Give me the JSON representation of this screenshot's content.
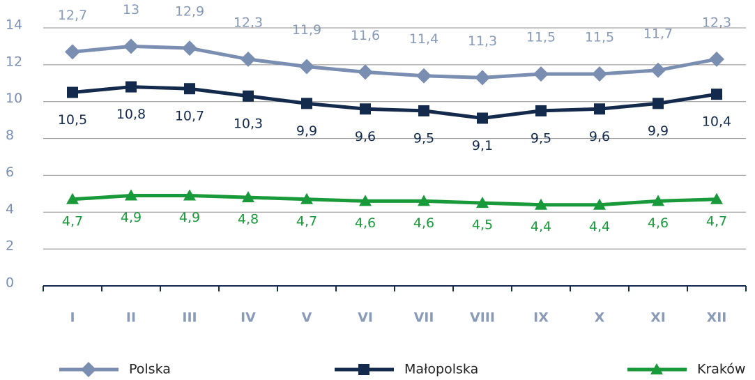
{
  "chart_data": {
    "type": "line",
    "categories": [
      "I",
      "II",
      "III",
      "IV",
      "V",
      "VI",
      "VII",
      "VIII",
      "IX",
      "X",
      "XI",
      "XII"
    ],
    "series": [
      {
        "name": "Polska",
        "color": "#7a8eb1",
        "marker": "diamond",
        "labels": "above",
        "values": [
          12.7,
          13,
          12.9,
          12.3,
          11.9,
          11.6,
          11.4,
          11.3,
          11.5,
          11.5,
          11.7,
          12.3
        ],
        "value_labels": [
          "12,7",
          "13",
          "12,9",
          "12,3",
          "11,9",
          "11,6",
          "11,4",
          "11,3",
          "11,5",
          "11,5",
          "11,7",
          "12,3"
        ]
      },
      {
        "name": "Małopolska",
        "color": "#132a4c",
        "marker": "square",
        "labels": "below",
        "values": [
          10.5,
          10.8,
          10.7,
          10.3,
          9.9,
          9.6,
          9.5,
          9.1,
          9.5,
          9.6,
          9.9,
          10.4
        ],
        "value_labels": [
          "10,5",
          "10,8",
          "10,7",
          "10,3",
          "9,9",
          "9,6",
          "9,5",
          "9,1",
          "9,5",
          "9,6",
          "9,9",
          "10,4"
        ]
      },
      {
        "name": "Kraków",
        "color": "#18993a",
        "marker": "triangle",
        "labels": "below",
        "values": [
          4.7,
          4.9,
          4.9,
          4.8,
          4.7,
          4.6,
          4.6,
          4.5,
          4.4,
          4.4,
          4.6,
          4.7
        ],
        "value_labels": [
          "4,7",
          "4,9",
          "4,9",
          "4,8",
          "4,7",
          "4,6",
          "4,6",
          "4,5",
          "4,4",
          "4,4",
          "4,6",
          "4,7"
        ]
      }
    ],
    "ylim": [
      0,
      14
    ],
    "yticks": [
      0,
      2,
      4,
      6,
      8,
      10,
      12,
      14
    ],
    "grid": true,
    "legend": "bottom"
  }
}
